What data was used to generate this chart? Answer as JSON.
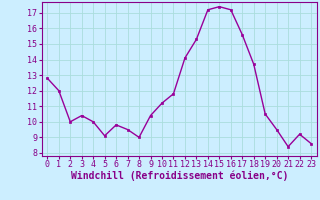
{
  "x": [
    0,
    1,
    2,
    3,
    4,
    5,
    6,
    7,
    8,
    9,
    10,
    11,
    12,
    13,
    14,
    15,
    16,
    17,
    18,
    19,
    20,
    21,
    22,
    23
  ],
  "y": [
    12.8,
    12.0,
    10.0,
    10.4,
    10.0,
    9.1,
    9.8,
    9.5,
    9.0,
    10.4,
    11.2,
    11.8,
    14.1,
    15.3,
    17.2,
    17.4,
    17.2,
    15.6,
    13.7,
    10.5,
    9.5,
    8.4,
    9.2,
    8.6
  ],
  "line_color": "#990099",
  "marker": "s",
  "marker_size": 2.0,
  "bg_color": "#cceeff",
  "grid_color": "#aadddd",
  "xlabel": "Windchill (Refroidissement éolien,°C)",
  "xlabel_color": "#880088",
  "xlabel_fontsize": 7.0,
  "ylabel_ticks": [
    8,
    9,
    10,
    11,
    12,
    13,
    14,
    15,
    16,
    17
  ],
  "ylim": [
    7.8,
    17.7
  ],
  "xlim": [
    -0.5,
    23.5
  ],
  "xtick_labels": [
    "0",
    "1",
    "2",
    "3",
    "4",
    "5",
    "6",
    "7",
    "8",
    "9",
    "10",
    "11",
    "12",
    "13",
    "14",
    "15",
    "16",
    "17",
    "18",
    "19",
    "20",
    "21",
    "22",
    "23"
  ],
  "tick_fontsize": 6.0,
  "tick_color": "#880088",
  "spine_color": "#880088",
  "linewidth": 1.0
}
